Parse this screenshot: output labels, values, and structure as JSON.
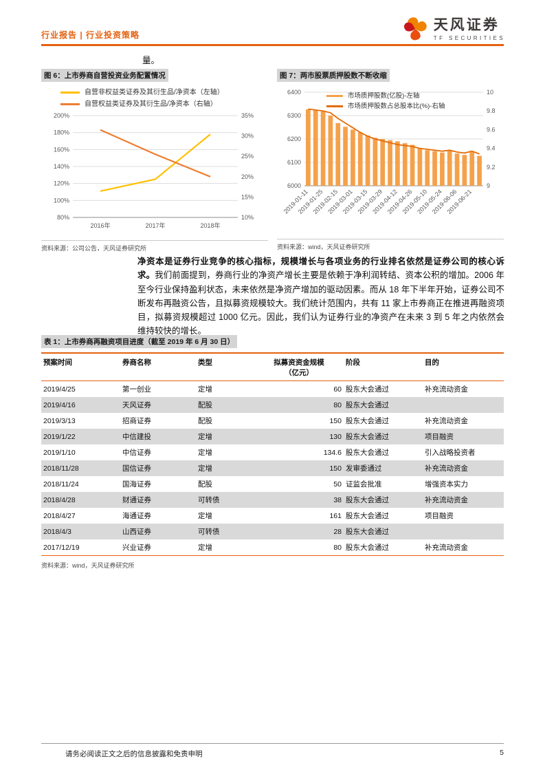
{
  "header": {
    "breadcrumb": "行业报告 | 行业投资策略",
    "brand": {
      "cn": "天风证券",
      "en": "TF SECURITIES"
    }
  },
  "colors": {
    "accent_orange": "#E4610F",
    "fig6_line_left": "#FFC000",
    "fig6_line_right": "#ED7D31",
    "fig7_bar": "#F5A14B",
    "fig7_line": "#E36C09",
    "table_alt_row": "#D9D9D9",
    "caption_highlight": "#D4D4D4"
  },
  "stray_text": "量。",
  "figure6": {
    "title": "图 6：上市券商自营投资业务配置情况",
    "source": "资料来源：公司公告，天风证券研究所"
  },
  "figure7": {
    "title": "图 7：两市股票质押股数不断收缩",
    "source": "资料来源：wind，天风证券研究所"
  },
  "paragraph": {
    "bold": "净资本是证券行业竞争的核心指标，规模增长与各项业务的行业排名依然是证券公司的核心诉求。",
    "rest": "我们前面提到，券商行业的净资产增长主要是依赖于净利润转结、资本公积的增加。2006 年至今行业保持盈利状态，未来依然是净资产增加的驱动因素。而从 18 年下半年开始，证券公司不断发布再融资公告，且拟募资规模较大。我们统计范围内，共有 11 家上市券商正在推进再融资项目，拟募资规模超过 1000 亿元。因此，我们认为证券行业的净资产在未来 3 到 5 年之内依然会维持较快的增长。"
  },
  "table1": {
    "title": "表 1：上市券商再融资项目进度（截至 2019 年 6 月 30 日）",
    "headers": [
      "预案时间",
      "券商名称",
      "类型",
      "拟募资资金规模",
      "阶段",
      "目的"
    ],
    "amount_unit": "（亿元）",
    "rows": [
      [
        "2019/4/25",
        "第一创业",
        "定增",
        "60",
        "股东大会通过",
        "补充流动资金"
      ],
      [
        "2019/4/16",
        "天风证券",
        "配股",
        "80",
        "股东大会通过",
        ""
      ],
      [
        "2019/3/13",
        "招商证券",
        "配股",
        "150",
        "股东大会通过",
        "补充流动资金"
      ],
      [
        "2019/1/22",
        "中信建投",
        "定增",
        "130",
        "股东大会通过",
        "项目融资"
      ],
      [
        "2019/1/10",
        "中信证券",
        "定增",
        "134.6",
        "股东大会通过",
        "引入战略投资者"
      ],
      [
        "2018/11/28",
        "国信证券",
        "定增",
        "150",
        "发审委通过",
        "补充流动资金"
      ],
      [
        "2018/11/24",
        "国海证券",
        "配股",
        "50",
        "证监会批准",
        "增强资本实力"
      ],
      [
        "2018/4/28",
        "财通证券",
        "可转债",
        "38",
        "股东大会通过",
        "补充流动资金"
      ],
      [
        "2018/4/27",
        "海通证券",
        "定增",
        "161",
        "股东大会通过",
        "项目融资"
      ],
      [
        "2018/4/3",
        "山西证券",
        "可转债",
        "28",
        "股东大会通过",
        ""
      ],
      [
        "2017/12/19",
        "兴业证券",
        "定增",
        "80",
        "股东大会通过",
        "补充流动资金"
      ]
    ],
    "source": "资料来源：wind，天风证券研究所"
  },
  "footer": {
    "disclaimer": "请务必阅读正文之后的信息披露和免责申明",
    "page_number": "5"
  },
  "chart_data": [
    {
      "type": "line",
      "title": "上市券商自营投资业务配置情况",
      "categories": [
        "2016年",
        "2017年",
        "2018年"
      ],
      "series": [
        {
          "name": "自营非权益类证券及其衍生品/净资本（左轴）",
          "axis": "left",
          "color": "#FFC000",
          "values": [
            111,
            125,
            178
          ]
        },
        {
          "name": "自营权益类证券及其衍生品/净资本（右轴）",
          "axis": "right",
          "color": "#ED7D31",
          "values": [
            31.5,
            25.5,
            20
          ]
        }
      ],
      "left_axis": {
        "min": 80,
        "max": 200,
        "step": 20,
        "suffix": "%"
      },
      "right_axis": {
        "min": 10,
        "max": 35,
        "step": 5,
        "suffix": "%"
      },
      "grid": true,
      "legend_position": "top-left"
    },
    {
      "type": "bar+line",
      "title": "两市股票质押股数不断收缩",
      "x_tick_labels": [
        "2019-01-11",
        "2019-01-25",
        "2019-02-15",
        "2019-03-01",
        "2019-03-15",
        "2019-03-29",
        "2019-04-12",
        "2019-04-26",
        "2019-05-10",
        "2019-05-24",
        "2019-06-06",
        "2019-06-21"
      ],
      "tick_every": 2,
      "series": [
        {
          "name": "市场质押股数(亿股)-左轴",
          "type": "bar",
          "axis": "left",
          "color": "#F5A14B",
          "values": [
            6327,
            6322,
            6318,
            6300,
            6268,
            6252,
            6240,
            6228,
            6215,
            6205,
            6200,
            6195,
            6190,
            6182,
            6175,
            6160,
            6152,
            6148,
            6142,
            6150,
            6138,
            6132,
            6145,
            6128
          ]
        },
        {
          "name": "市场质押股数占总股本比(%)-右轴",
          "type": "line",
          "axis": "right",
          "color": "#E36C09",
          "values": [
            9.82,
            9.81,
            9.8,
            9.78,
            9.72,
            9.67,
            9.62,
            9.57,
            9.53,
            9.5,
            9.48,
            9.46,
            9.44,
            9.43,
            9.42,
            9.4,
            9.39,
            9.38,
            9.37,
            9.38,
            9.36,
            9.35,
            9.37,
            9.34
          ]
        }
      ],
      "left_axis": {
        "min": 6000,
        "max": 6400,
        "step": 100
      },
      "right_axis": {
        "min": 9,
        "max": 10,
        "step": 0.2
      },
      "grid": true,
      "legend_position": "top"
    }
  ]
}
